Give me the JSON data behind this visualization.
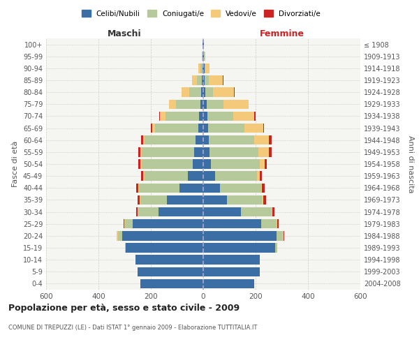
{
  "age_groups": [
    "0-4",
    "5-9",
    "10-14",
    "15-19",
    "20-24",
    "25-29",
    "30-34",
    "35-39",
    "40-44",
    "45-49",
    "50-54",
    "55-59",
    "60-64",
    "65-69",
    "70-74",
    "75-79",
    "80-84",
    "85-89",
    "90-94",
    "95-99",
    "100+"
  ],
  "birth_years": [
    "2004-2008",
    "1999-2003",
    "1994-1998",
    "1989-1993",
    "1984-1988",
    "1979-1983",
    "1974-1978",
    "1969-1973",
    "1964-1968",
    "1959-1963",
    "1954-1958",
    "1949-1953",
    "1944-1948",
    "1939-1943",
    "1934-1938",
    "1929-1933",
    "1924-1928",
    "1919-1923",
    "1914-1918",
    "1909-1913",
    "≤ 1908"
  ],
  "colors": {
    "celibe": "#3A6EA5",
    "coniugato": "#B5C99A",
    "vedovo": "#F5C97A",
    "divorziato": "#CC2222"
  },
  "maschi": {
    "celibe": [
      240,
      250,
      260,
      295,
      310,
      270,
      170,
      140,
      90,
      60,
      40,
      35,
      30,
      20,
      15,
      10,
      8,
      5,
      3,
      2,
      2
    ],
    "coniugato": [
      0,
      0,
      0,
      5,
      15,
      30,
      80,
      100,
      155,
      165,
      195,
      200,
      195,
      165,
      130,
      95,
      45,
      20,
      8,
      2,
      0
    ],
    "vedovo": [
      0,
      0,
      0,
      0,
      5,
      2,
      2,
      2,
      3,
      5,
      5,
      5,
      5,
      10,
      20,
      25,
      30,
      18,
      8,
      2,
      0
    ],
    "divorziato": [
      0,
      0,
      0,
      0,
      2,
      3,
      5,
      8,
      8,
      8,
      7,
      8,
      8,
      5,
      2,
      2,
      0,
      0,
      0,
      0,
      0
    ]
  },
  "femmine": {
    "nubile": [
      195,
      215,
      215,
      275,
      280,
      220,
      145,
      90,
      65,
      45,
      30,
      25,
      20,
      18,
      15,
      12,
      8,
      5,
      4,
      3,
      2
    ],
    "coniugata": [
      0,
      0,
      0,
      8,
      25,
      60,
      115,
      135,
      155,
      160,
      185,
      185,
      175,
      140,
      100,
      65,
      30,
      15,
      5,
      2,
      0
    ],
    "vedova": [
      0,
      0,
      0,
      0,
      2,
      3,
      5,
      5,
      5,
      10,
      20,
      40,
      55,
      70,
      80,
      95,
      80,
      55,
      15,
      3,
      0
    ],
    "divorziata": [
      0,
      0,
      0,
      0,
      2,
      5,
      8,
      10,
      10,
      10,
      8,
      10,
      10,
      5,
      5,
      2,
      2,
      2,
      0,
      0,
      0
    ]
  },
  "xlim": 600,
  "title": "Popolazione per età, sesso e stato civile - 2009",
  "subtitle": "COMUNE DI TREPUZZI (LE) - Dati ISTAT 1° gennaio 2009 - Elaborazione TUTTITALIA.IT",
  "xlabel_left": "Maschi",
  "xlabel_right": "Femmine",
  "ylabel_left": "Fasce di età",
  "ylabel_right": "Anni di nascita",
  "legend_labels": [
    "Celibi/Nubili",
    "Coniugati/e",
    "Vedovi/e",
    "Divorziati/e"
  ],
  "background_color": "#FFFFFF",
  "plot_bg_color": "#F5F5F2",
  "grid_color": "#CCCCCC"
}
